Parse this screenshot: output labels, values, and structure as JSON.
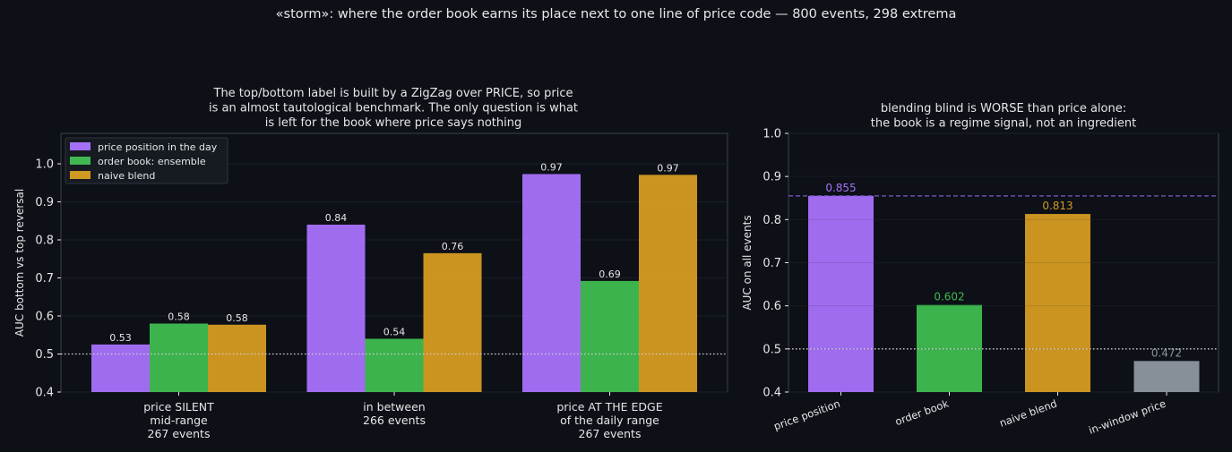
{
  "suptitle": "«storm»: where the order book earns its place next to one line of price code — 800 events, 298 extrema",
  "colors": {
    "background": "#0d1017",
    "price": "#a570f7",
    "book": "#3fb950",
    "blend": "#d29922",
    "inwindow": "#8b949e",
    "text": "#e6e6e6",
    "grid": "#1b1f27",
    "axis": "#3a3f48"
  },
  "chart_data": [
    {
      "type": "bar",
      "title": "The top/bottom label is built by a ZigZag over PRICE, so price\nis an almost tautological benchmark. The only question is what\nis left for the book where price says nothing",
      "xlabel": "",
      "ylabel": "AUC bottom vs top reversal",
      "ylim": [
        0.4,
        1.08
      ],
      "yticks": [
        "0.4",
        "0.5",
        "0.6",
        "0.7",
        "0.8",
        "0.9",
        "1.0"
      ],
      "reference_line": 0.5,
      "legend_position": "top-left",
      "categories": [
        "price SILENT\nmid-range\n267 events",
        "in between\n266 events",
        "price AT THE EDGE\nof the daily range\n267 events"
      ],
      "series": [
        {
          "name": "price position in the day",
          "values": [
            0.525,
            0.84,
            0.973
          ],
          "labels": [
            "0.53",
            "0.84",
            "0.97"
          ]
        },
        {
          "name": "order book: ensemble",
          "values": [
            0.58,
            0.54,
            0.692
          ],
          "labels": [
            "0.58",
            "0.54",
            "0.69"
          ]
        },
        {
          "name": "naive blend",
          "values": [
            0.577,
            0.765,
            0.971
          ],
          "labels": [
            "0.58",
            "0.76",
            "0.97"
          ]
        }
      ]
    },
    {
      "type": "bar",
      "title": "blending blind is WORSE than price alone:\nthe book is a regime signal, not an ingredient",
      "xlabel": "",
      "ylabel": "AUC on all events",
      "ylim": [
        0.4,
        1.0
      ],
      "yticks": [
        "0.4",
        "0.5",
        "0.6",
        "0.7",
        "0.8",
        "0.9",
        "1.0"
      ],
      "reference_line": 0.5,
      "price_line": 0.855,
      "categories": [
        "price position",
        "order book",
        "naive blend",
        "in-window price"
      ],
      "values": [
        0.855,
        0.602,
        0.813,
        0.472
      ],
      "labels": [
        "0.855",
        "0.602",
        "0.813",
        "0.472"
      ]
    }
  ]
}
